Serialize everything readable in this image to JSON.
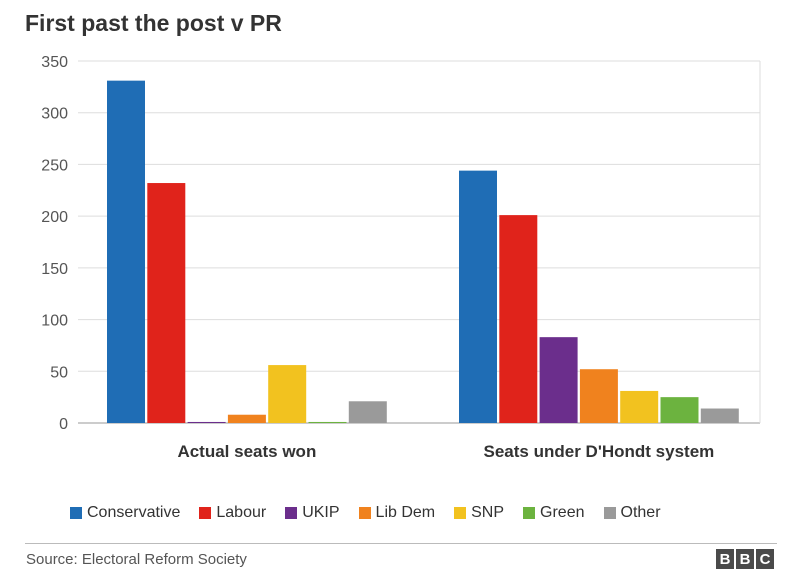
{
  "chart_data": {
    "type": "bar",
    "title": "First past the post v PR",
    "categories": [
      "Actual seats won",
      "Seats under D'Hondt system"
    ],
    "series": [
      {
        "name": "Conservative",
        "color": "#1f6db5",
        "values": [
          331,
          244
        ]
      },
      {
        "name": "Labour",
        "color": "#e0231b",
        "values": [
          232,
          201
        ]
      },
      {
        "name": "UKIP",
        "color": "#6b2e8c",
        "values": [
          1,
          83
        ]
      },
      {
        "name": "Lib Dem",
        "color": "#f0821e",
        "values": [
          8,
          52
        ]
      },
      {
        "name": "SNP",
        "color": "#f2c21f",
        "values": [
          56,
          31
        ]
      },
      {
        "name": "Green",
        "color": "#6cb33f",
        "values": [
          1,
          25
        ]
      },
      {
        "name": "Other",
        "color": "#9a9a9a",
        "values": [
          21,
          14
        ]
      }
    ],
    "ylim": [
      0,
      350
    ],
    "yticks": [
      0,
      50,
      100,
      150,
      200,
      250,
      300,
      350
    ],
    "grid": true,
    "legend": "bottom"
  },
  "source": "Source: Electoral Reform Society",
  "logo": {
    "letters": [
      "B",
      "B",
      "C"
    ]
  }
}
